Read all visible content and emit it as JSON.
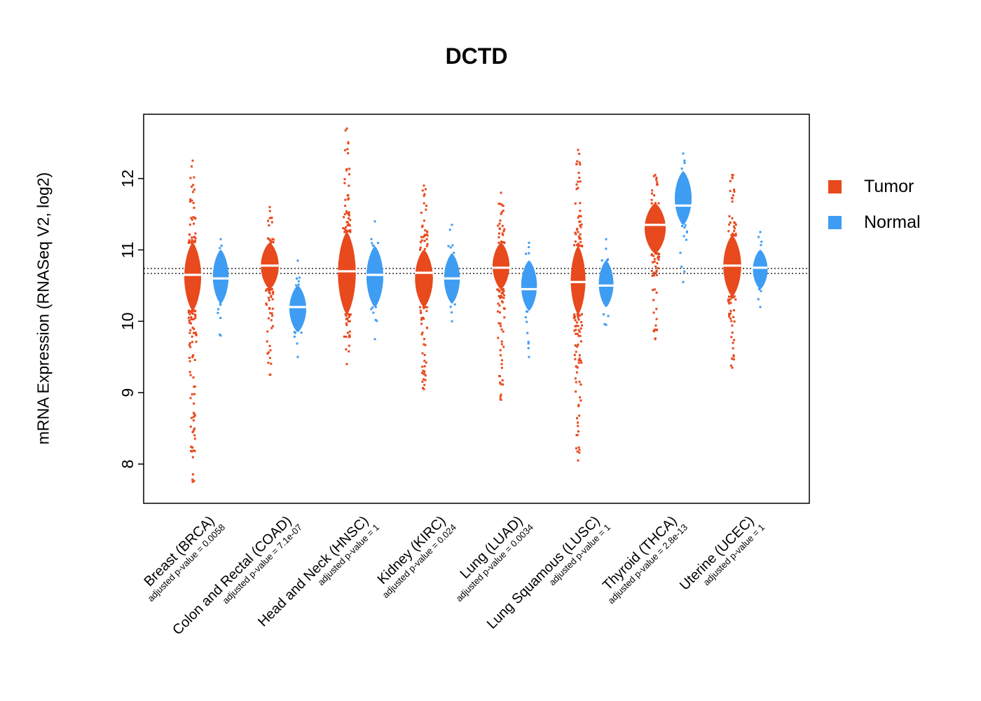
{
  "chart_data": {
    "type": "violin-beeswarm",
    "title": "DCTD",
    "ylabel": "mRNA Expression (RNASeq V2, log2)",
    "yticks": [
      8,
      9,
      10,
      11,
      12
    ],
    "ylim": [
      7.45,
      12.9
    ],
    "grid": false,
    "reference_lines": [
      10.67,
      10.74
    ],
    "legend_position": "right",
    "legend": [
      {
        "label": "Tumor",
        "color": "#E8491D"
      },
      {
        "label": "Normal",
        "color": "#3E9DF3"
      }
    ],
    "groups": [
      {
        "category": "Breast (BRCA)",
        "pvalue_label": "adjusted p-value = 0.0058",
        "tumor": {
          "median": 10.65,
          "violin": [
            10.15,
            11.1
          ],
          "tail": [
            7.75,
            12.25
          ],
          "w": 0.8
        },
        "normal": {
          "median": 10.6,
          "violin": [
            10.25,
            11.0
          ],
          "tail": [
            9.8,
            11.15
          ],
          "w": 0.75
        }
      },
      {
        "category": "Colon and Rectal (COAD)",
        "pvalue_label": "adjusted p-value = 7.1e-07",
        "tumor": {
          "median": 10.78,
          "violin": [
            10.45,
            11.1
          ],
          "tail": [
            9.25,
            11.6
          ],
          "w": 0.85
        },
        "normal": {
          "median": 10.2,
          "violin": [
            9.85,
            10.5
          ],
          "tail": [
            9.5,
            10.85
          ],
          "w": 0.8
        }
      },
      {
        "category": "Head and Neck (HNSC)",
        "pvalue_label": "adjusted p-value = 1",
        "tumor": {
          "median": 10.7,
          "violin": [
            10.1,
            11.25
          ],
          "tail": [
            9.4,
            12.7
          ],
          "w": 0.85
        },
        "normal": {
          "median": 10.65,
          "violin": [
            10.2,
            11.05
          ],
          "tail": [
            9.75,
            11.4
          ],
          "w": 0.8
        }
      },
      {
        "category": "Kidney (KIRC)",
        "pvalue_label": "adjusted p-value = 0.024",
        "tumor": {
          "median": 10.68,
          "violin": [
            10.2,
            11.0
          ],
          "tail": [
            9.05,
            11.9
          ],
          "w": 0.85
        },
        "normal": {
          "median": 10.6,
          "violin": [
            10.25,
            10.95
          ],
          "tail": [
            10.0,
            11.35
          ],
          "w": 0.75
        }
      },
      {
        "category": "Lung (LUAD)",
        "pvalue_label": "adjusted p-value = 0.0034",
        "tumor": {
          "median": 10.75,
          "violin": [
            10.45,
            11.1
          ],
          "tail": [
            8.9,
            11.8
          ],
          "w": 0.8
        },
        "normal": {
          "median": 10.45,
          "violin": [
            10.15,
            10.85
          ],
          "tail": [
            9.5,
            11.1
          ],
          "w": 0.75
        }
      },
      {
        "category": "Lung Squamous (LUSC)",
        "pvalue_label": "adjusted p-value = 1",
        "tumor": {
          "median": 10.55,
          "violin": [
            10.1,
            11.05
          ],
          "tail": [
            8.05,
            12.4
          ],
          "w": 0.7
        },
        "normal": {
          "median": 10.5,
          "violin": [
            10.2,
            10.85
          ],
          "tail": [
            9.95,
            11.15
          ],
          "w": 0.7
        }
      },
      {
        "category": "Thyroid (THCA)",
        "pvalue_label": "adjusted p-value = 2.8e-13",
        "tumor": {
          "median": 11.35,
          "violin": [
            10.95,
            11.65
          ],
          "tail": [
            9.75,
            12.05
          ],
          "w": 1.0
        },
        "normal": {
          "median": 11.62,
          "violin": [
            11.35,
            12.1
          ],
          "tail": [
            10.55,
            12.35
          ],
          "w": 0.8
        }
      },
      {
        "category": "Uterine (UCEC)",
        "pvalue_label": "adjusted p-value = 1",
        "tumor": {
          "median": 10.78,
          "violin": [
            10.35,
            11.2
          ],
          "tail": [
            9.35,
            12.05
          ],
          "w": 0.85
        },
        "normal": {
          "median": 10.75,
          "violin": [
            10.45,
            11.0
          ],
          "tail": [
            10.2,
            11.25
          ],
          "w": 0.7
        }
      }
    ]
  }
}
